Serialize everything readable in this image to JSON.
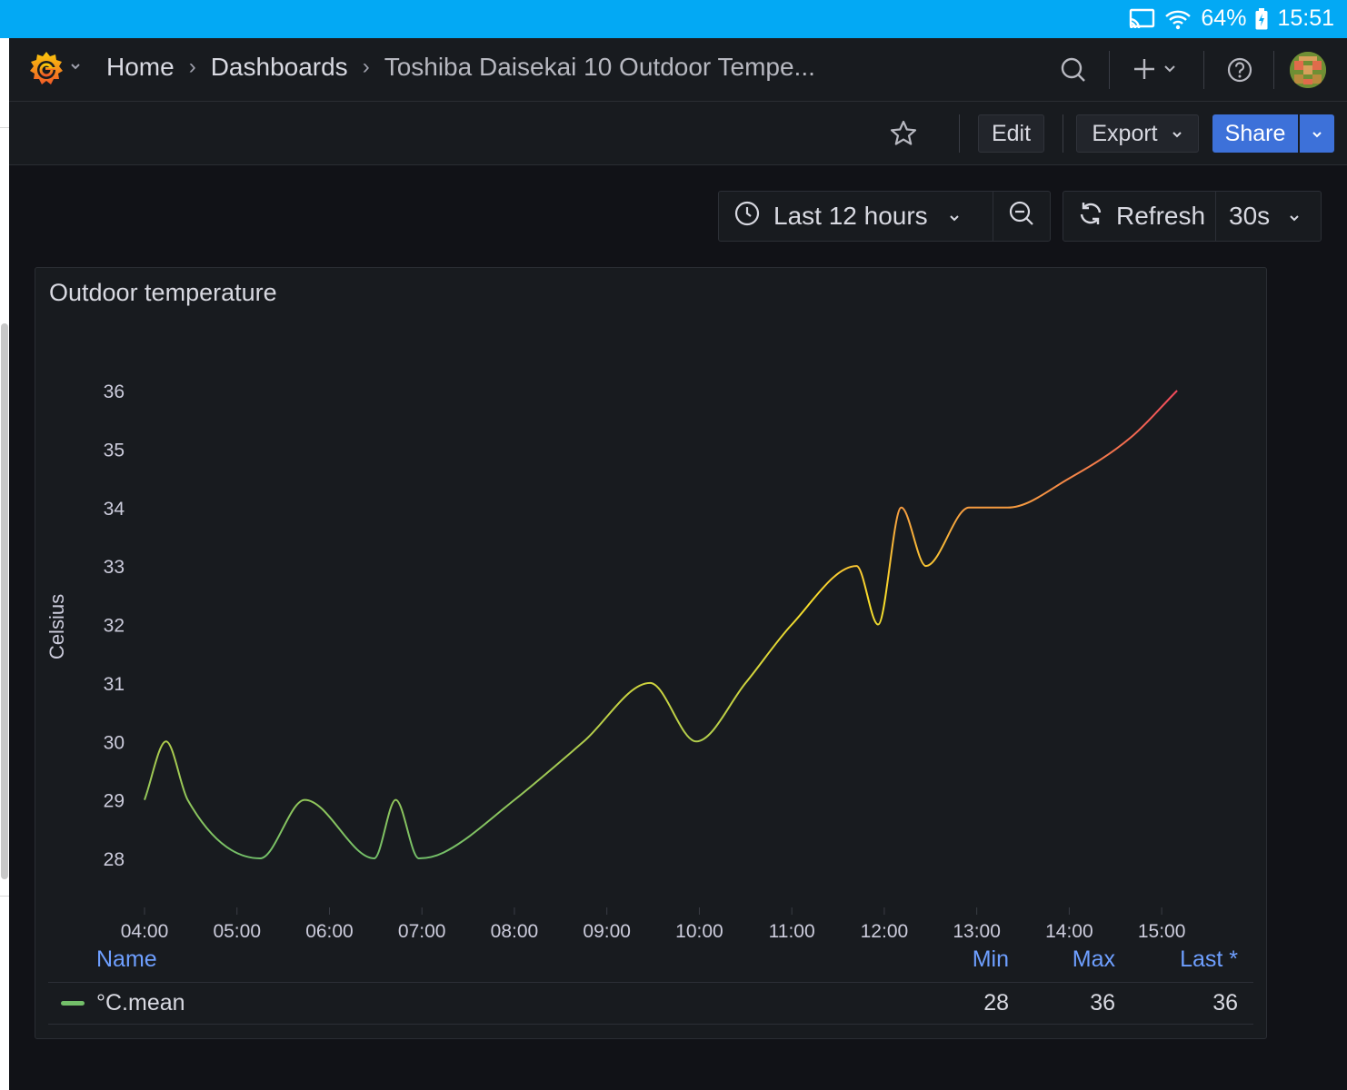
{
  "status_bar": {
    "battery": "64%",
    "time": "15:51",
    "icons": [
      "cast-icon",
      "wifi-icon",
      "battery-icon"
    ]
  },
  "breadcrumb": {
    "home": "Home",
    "dashboards": "Dashboards",
    "current": "Toshiba Daisekai 10 Outdoor Tempe..."
  },
  "toolbar": {
    "edit_label": "Edit",
    "export_label": "Export",
    "share_label": "Share"
  },
  "time_picker": {
    "range_label": "Last 12 hours",
    "refresh_label": "Refresh",
    "refresh_interval": "30s"
  },
  "panel": {
    "title": "Outdoor temperature"
  },
  "legend": {
    "headers": {
      "name": "Name",
      "min": "Min",
      "max": "Max",
      "last": "Last *"
    },
    "rows": [
      {
        "name": "°C.mean",
        "color": "#73bf69",
        "min": "28",
        "max": "36",
        "last": "36"
      }
    ]
  },
  "colors": {
    "accent": "#3d71d9",
    "background": "#111217",
    "panel": "#181b1f",
    "gradient_low": "#73bf69",
    "gradient_mid": "#fade2a",
    "gradient_high": "#f2495c"
  },
  "chart_data": {
    "type": "line",
    "title": "Outdoor temperature",
    "ylabel": "Celsius",
    "xlabel": "",
    "ylim": [
      28,
      36
    ],
    "yticks": [
      28,
      29,
      30,
      31,
      32,
      33,
      34,
      35,
      36
    ],
    "x_ticks": [
      "04:00",
      "05:00",
      "06:00",
      "07:00",
      "08:00",
      "09:00",
      "10:00",
      "11:00",
      "12:00",
      "13:00",
      "14:00",
      "15:00"
    ],
    "x_range": [
      "04:00",
      "15:30"
    ],
    "grid": true,
    "legend_placement": "bottom",
    "series": [
      {
        "name": "°C.mean",
        "x": [
          "04:00",
          "04:14",
          "04:28",
          "05:15",
          "05:44",
          "06:29",
          "06:43",
          "06:58",
          "07:14",
          "08:00",
          "08:45",
          "09:28",
          "09:58",
          "10:30",
          "11:00",
          "11:42",
          "11:56",
          "12:11",
          "12:27",
          "12:55",
          "13:20",
          "14:00",
          "14:40",
          "15:10"
        ],
        "values": [
          29,
          30,
          29,
          28,
          29,
          28,
          29,
          28,
          28.1,
          29,
          30,
          31,
          30,
          31,
          32,
          33,
          32,
          34,
          33,
          34,
          34,
          34.5,
          35.2,
          36
        ]
      }
    ]
  }
}
